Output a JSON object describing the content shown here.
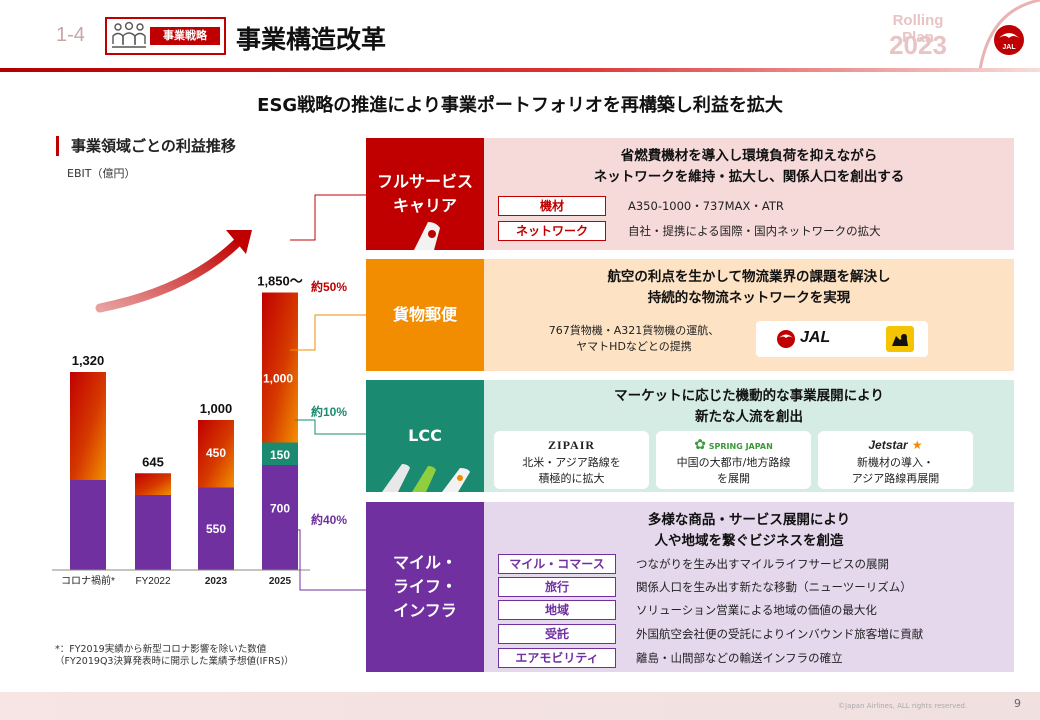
{
  "header": {
    "section_number": "1-4",
    "tag": "事業戦略",
    "title": "事業構造改革",
    "rolling_plan_label": "Rolling Plan",
    "rolling_plan_year": "2023"
  },
  "subtitle": "ESG戦略の推進により事業ポートフォリオを再構築し利益を拡大",
  "chart_title": "事業領域ごとの利益推移",
  "chart_unit": "EBIT（億円）",
  "chart_data": {
    "type": "bar",
    "title": "事業領域ごとの利益推移",
    "ylabel": "EBIT（億円）",
    "categories": [
      "コロナ禍前*",
      "FY2022",
      "2023",
      "2025"
    ],
    "totals": [
      "1,320",
      "645",
      "1,000",
      "1,850〜"
    ],
    "series": [
      {
        "name": "フルサービスキャリア",
        "color": "#c00000",
        "values": [
          null,
          null,
          null,
          null
        ]
      },
      {
        "name": "LCC",
        "color": "#1a8a70",
        "values": [
          null,
          null,
          null,
          150
        ]
      },
      {
        "name": "マイル・ライフ・インフラ",
        "color": "#7030a0",
        "values": [
          null,
          null,
          550,
          700
        ]
      }
    ],
    "segment_labels": {
      "2023": [
        "450",
        "550"
      ],
      "2025": [
        "1,000",
        "150",
        "700"
      ]
    },
    "share_labels": [
      "約50%",
      "約10%",
      "約40%"
    ],
    "ylim": [
      0,
      2000
    ]
  },
  "footnote": {
    "line1": "*：FY2019実績から新型コロナ影響を除いた数値",
    "line2": "（FY2019Q3決算発表時に開示した業績予想値(IFRS)）"
  },
  "panels": {
    "fsc": {
      "label_line1": "フルサービス",
      "label_line2": "キャリア",
      "title_line1": "省燃費機材を導入し環境負荷を抑えながら",
      "title_line2": "ネットワークを維持・拡大し、関係人口を創出する",
      "items": [
        {
          "key": "機材",
          "value": "A350-1000・737MAX・ATR"
        },
        {
          "key": "ネットワーク",
          "value": "自社・提携による国際・国内ネットワークの拡大"
        }
      ]
    },
    "cargo": {
      "label": "貨物郵便",
      "title_line1": "航空の利点を生かして物流業界の課題を解決し",
      "title_line2": "持続的な物流ネットワークを実現",
      "desc_line1": "767貨物機・A321貨物機の運航、",
      "desc_line2": "ヤマトHDなどとの提携",
      "logo_text": "JAL"
    },
    "lcc": {
      "label": "LCC",
      "title_line1": "マーケットに応じた機動的な事業展開により",
      "title_line2": "新たな人流を創出",
      "cards": [
        {
          "logo": "ZIPAIR",
          "line1": "北米・アジア路線を",
          "line2": "積極的に拡大"
        },
        {
          "logo": "SPRING JAPAN",
          "line1": "中国の大都市/地方路線",
          "line2": "を展開"
        },
        {
          "logo": "Jetstar",
          "line1": "新機材の導入・",
          "line2": "アジア路線再展開"
        }
      ]
    },
    "mile": {
      "label_line1": "マイル・",
      "label_line2": "ライフ・",
      "label_line3": "インフラ",
      "title_line1": "多様な商品・サービス展開により",
      "title_line2": "人や地域を繋ぐビジネスを創造",
      "items": [
        {
          "key": "マイル・コマース",
          "value": "つながりを生み出すマイルライフサービスの展開"
        },
        {
          "key": "旅行",
          "value": "関係人口を生み出す新たな移動（ニューツーリズム）"
        },
        {
          "key": "地域",
          "value": "ソリューション営業による地域の価値の最大化"
        },
        {
          "key": "受託",
          "value": "外国航空会社便の受託によりインバウンド旅客増に貢献"
        },
        {
          "key": "エアモビリティ",
          "value": "離島・山間部などの輸送インフラの確立"
        }
      ]
    }
  },
  "footer": {
    "copyright": "©Japan Airlines, ALL rights reserved.",
    "page_number": "9"
  },
  "colors": {
    "jal_red": "#c00000",
    "cargo_orange": "#f28c00",
    "lcc_green": "#1a8a70",
    "mile_purple": "#7030a0",
    "fsc_bg": "#f6dada",
    "cargo_bg": "#fde2c4",
    "lcc_bg": "#d4ece4",
    "mile_bg": "#e5d8ec"
  }
}
